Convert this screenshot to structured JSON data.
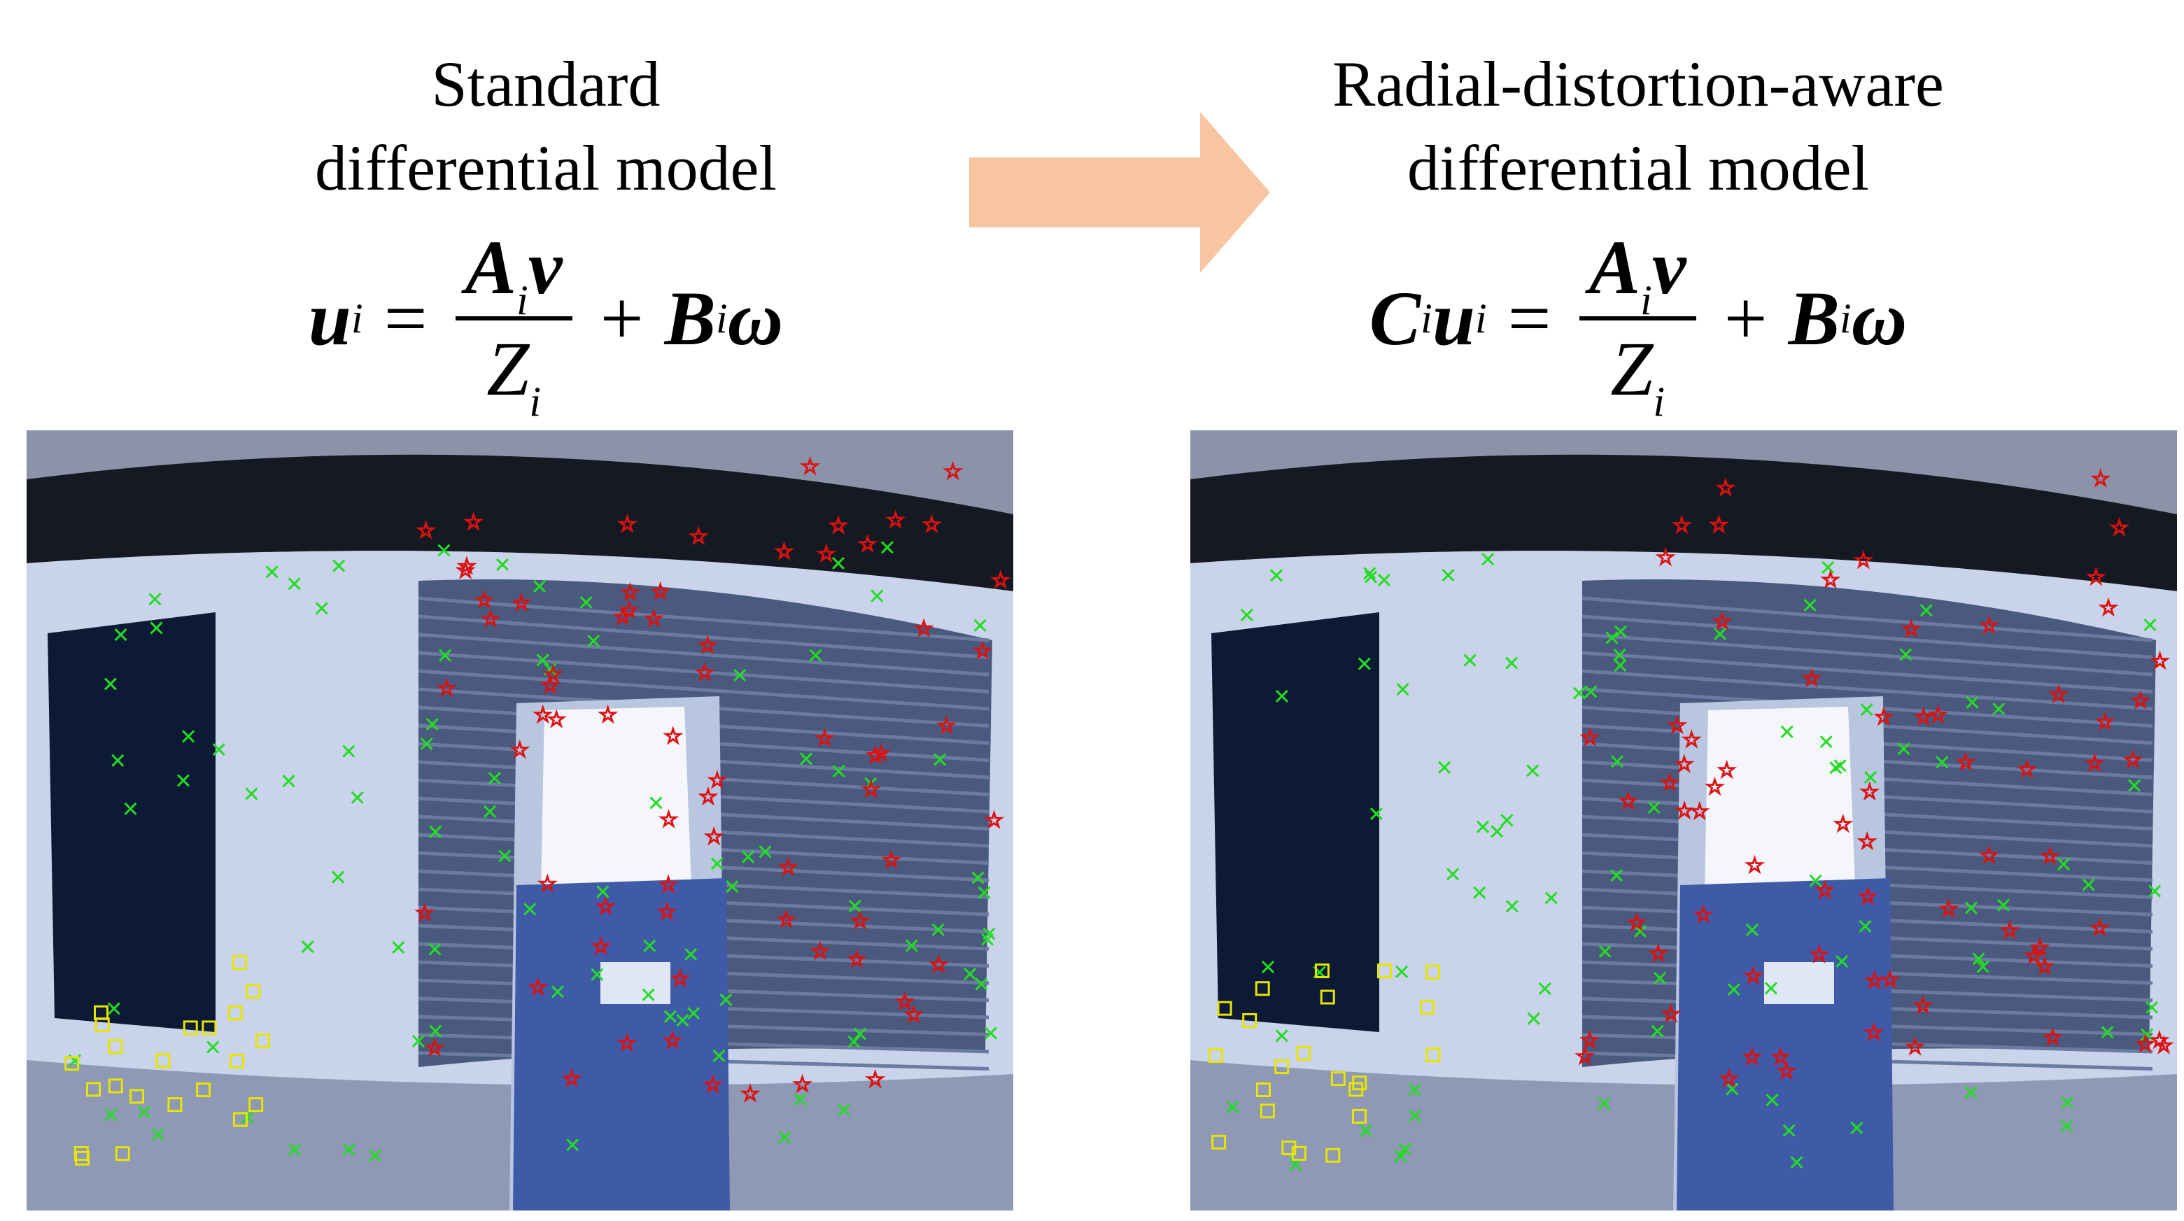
{
  "left_panel": {
    "title_line1": "Standard",
    "title_line2": "differential model",
    "equation": {
      "lhs_var": "u",
      "lhs_sub": "i",
      "equals": "=",
      "num_var1": "A",
      "num_sub1": "i",
      "num_var2": "v",
      "den_var": "Z",
      "den_sub": "i",
      "plus": "+",
      "term_var": "B",
      "term_sub": "i",
      "term_var2": "ω"
    }
  },
  "right_panel": {
    "title_line1": "Radial-distortion-aware",
    "title_line2": "differential model",
    "equation": {
      "pre_var": "C",
      "pre_sub": "i",
      "lhs_var": "u",
      "lhs_sub": "i",
      "equals": "=",
      "num_var1": "A",
      "num_sub1": "i",
      "num_var2": "v",
      "den_var": "Z",
      "den_sub": "i",
      "plus": "+",
      "term_var": "B",
      "term_sub": "i",
      "term_var2": "ω"
    }
  },
  "arrow_color": "#f7c59f",
  "marker_legend": {
    "green_cross": "#22dd22",
    "red_star": "#dd1111",
    "yellow_square": "#e6e600"
  }
}
